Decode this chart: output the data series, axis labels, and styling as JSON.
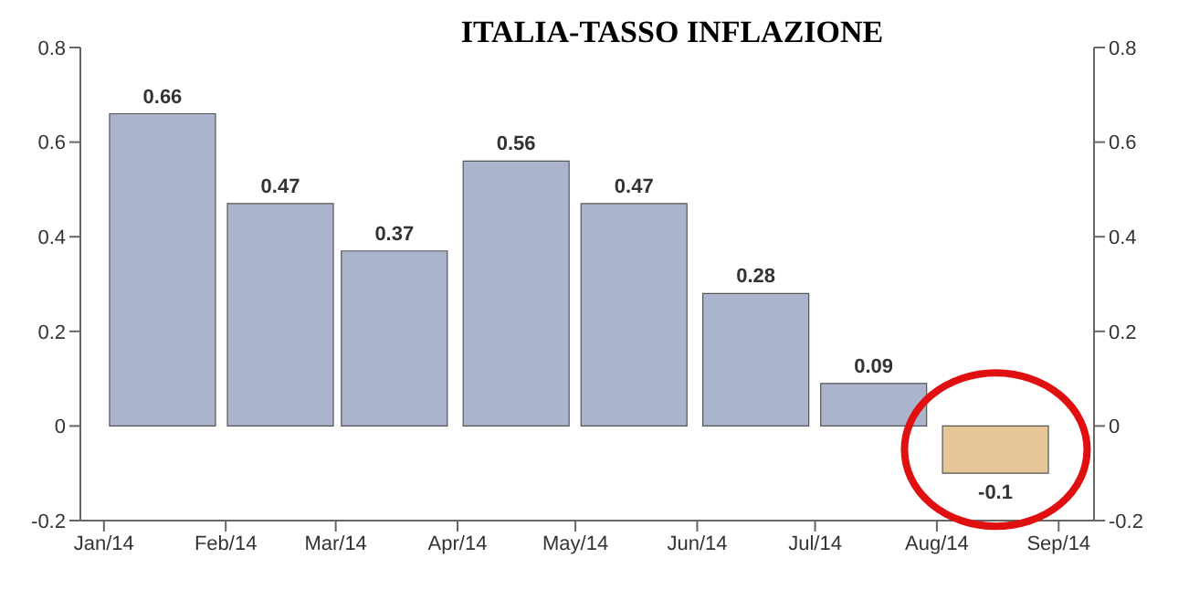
{
  "chart_data": {
    "type": "bar",
    "title": "ITALIA-TASSO INFLAZIONE",
    "x": [
      "2014-01-16",
      "2014-02-15",
      "2014-03-16",
      "2014-04-16",
      "2014-05-16",
      "2014-06-16",
      "2014-07-16",
      "2014-08-16"
    ],
    "values": [
      0.66,
      0.47,
      0.37,
      0.56,
      0.47,
      0.28,
      0.09,
      -0.1
    ],
    "colors": [
      "#aab4cc",
      "#aab4cc",
      "#aab4cc",
      "#aab4cc",
      "#aab4cc",
      "#aab4cc",
      "#aab4cc",
      "#e6c596"
    ],
    "xlim": [
      "2013-12-26",
      "2014-09-10"
    ],
    "xticks": [
      {
        "value": "2014-01-01",
        "label": "Jan/14"
      },
      {
        "value": "2014-02-01",
        "label": "Feb/14"
      },
      {
        "value": "2014-03-01",
        "label": "Mar/14"
      },
      {
        "value": "2014-04-01",
        "label": "Apr/14"
      },
      {
        "value": "2014-05-01",
        "label": "May/14"
      },
      {
        "value": "2014-06-01",
        "label": "Jun/14"
      },
      {
        "value": "2014-07-01",
        "label": "Jul/14"
      },
      {
        "value": "2014-08-01",
        "label": "Aug/14"
      },
      {
        "value": "2014-09-01",
        "label": "Sep/14"
      }
    ],
    "ylim": [
      -0.2,
      0.8
    ],
    "yticks": [
      -0.2,
      0,
      0.2,
      0.4,
      0.6,
      0.8
    ],
    "y2lim": [
      -0.2,
      0.8
    ],
    "y2ticks": [
      -0.2,
      0,
      0.2,
      0.4,
      0.6,
      0.8
    ],
    "data_labels": true
  }
}
